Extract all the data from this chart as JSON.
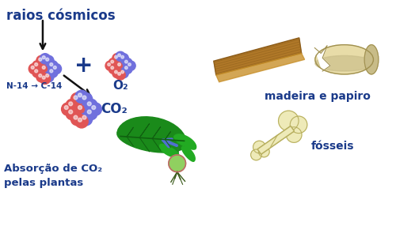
{
  "bg_color": "#ffffff",
  "text_color": "#1a3a8a",
  "title_label": "raios cósmicos",
  "n14_c14_label": "N-14 → C-14",
  "o2_label": "O₂",
  "co2_label": "CO₂",
  "absorb_label": "Absorção de CO₂\npelas plantas",
  "madeira_label": "madeira e papiro",
  "fosseis_label": "fósseis",
  "plus_label": "+",
  "atom_red": "#e05555",
  "atom_blue": "#7070dd",
  "atom_pink": "#dd88aa",
  "leaf_dark": "#1a8a1a",
  "leaf_mid": "#22aa22",
  "leaf_light": "#44cc44",
  "wood_brown": "#b07828",
  "wood_dark": "#8a5a18",
  "wood_grain": "#9a6820",
  "scroll_body": "#e8dca8",
  "scroll_shadow": "#c8bc88",
  "bone_light": "#eeeab8",
  "bone_mid": "#d4d090",
  "bone_dark": "#b8b060",
  "arrow_color": "#111111",
  "blue_arrow": "#5070d0",
  "figsize": [
    5.0,
    2.86
  ],
  "dpi": 100
}
